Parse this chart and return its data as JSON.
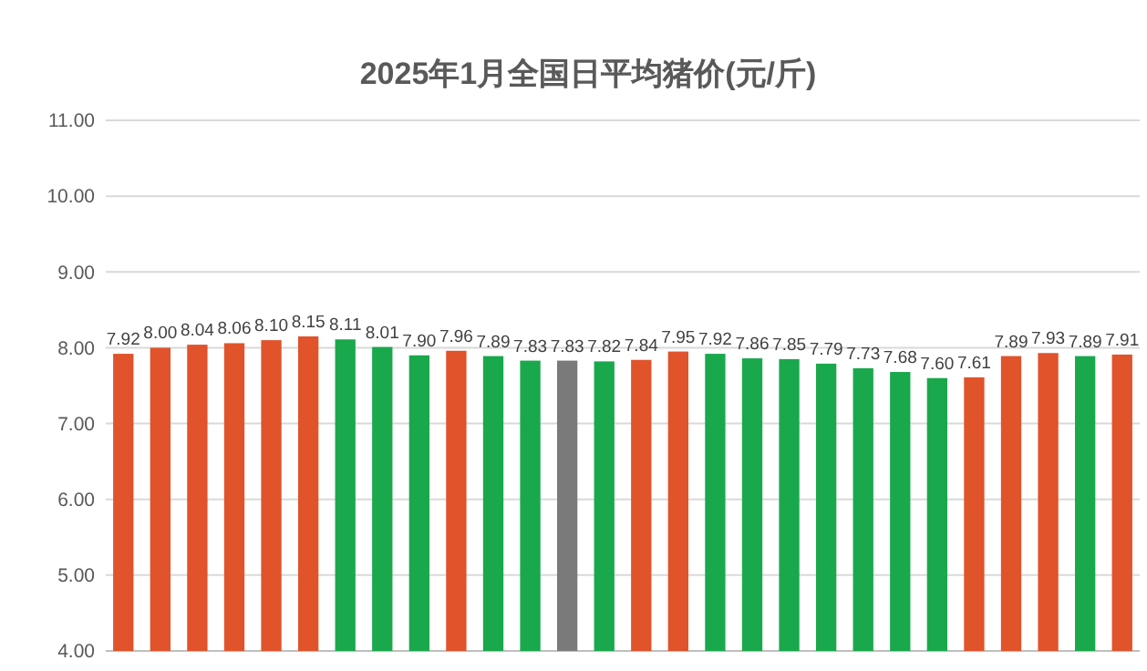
{
  "chart_data": {
    "type": "bar",
    "title": "2025年1月全国日平均猪价(元/斤)",
    "categories": [
      null,
      null,
      null,
      null,
      null,
      null,
      null,
      null,
      null,
      null,
      null,
      null,
      null,
      null,
      null,
      null,
      null,
      null,
      null,
      null,
      null,
      null,
      null,
      null,
      null,
      null,
      null,
      null
    ],
    "values": [
      7.92,
      8.0,
      8.04,
      8.06,
      8.1,
      8.15,
      8.11,
      8.01,
      7.9,
      7.96,
      7.89,
      7.83,
      7.83,
      7.82,
      7.84,
      7.95,
      7.92,
      7.86,
      7.85,
      7.79,
      7.73,
      7.68,
      7.6,
      7.61,
      7.89,
      7.93,
      7.89,
      7.91
    ],
    "colors": [
      "#e0532b",
      "#e0532b",
      "#e0532b",
      "#e0532b",
      "#e0532b",
      "#e0532b",
      "#1aa84c",
      "#1aa84c",
      "#1aa84c",
      "#e0532b",
      "#1aa84c",
      "#1aa84c",
      "#7a7a7a",
      "#1aa84c",
      "#e0532b",
      "#e0532b",
      "#1aa84c",
      "#1aa84c",
      "#1aa84c",
      "#1aa84c",
      "#1aa84c",
      "#1aa84c",
      "#1aa84c",
      "#e0532b",
      "#e0532b",
      "#e0532b",
      "#1aa84c",
      "#e0532b"
    ],
    "value_labels": [
      "7.92",
      "8.00",
      "8.04",
      "8.06",
      "8.10",
      "8.15",
      "8.11",
      "8.01",
      "7.90",
      "7.96",
      "7.89",
      "7.83",
      "7.83",
      "7.82",
      "7.84",
      "7.95",
      "7.92",
      "7.86",
      "7.85",
      "7.79",
      "7.73",
      "7.68",
      "7.60",
      "7.61",
      "7.89",
      "7.93",
      "7.89",
      "7.91"
    ],
    "ylim": [
      4,
      11
    ],
    "yticks": [
      {
        "value": 4,
        "label": "4.00"
      },
      {
        "value": 5,
        "label": "5.00"
      },
      {
        "value": 6,
        "label": "6.00"
      },
      {
        "value": 7,
        "label": "7.00"
      },
      {
        "value": 8,
        "label": "8.00"
      },
      {
        "value": 9,
        "label": "9.00"
      },
      {
        "value": 10,
        "label": "10.00"
      },
      {
        "value": 11,
        "label": "11.00"
      }
    ],
    "grid": "y"
  }
}
